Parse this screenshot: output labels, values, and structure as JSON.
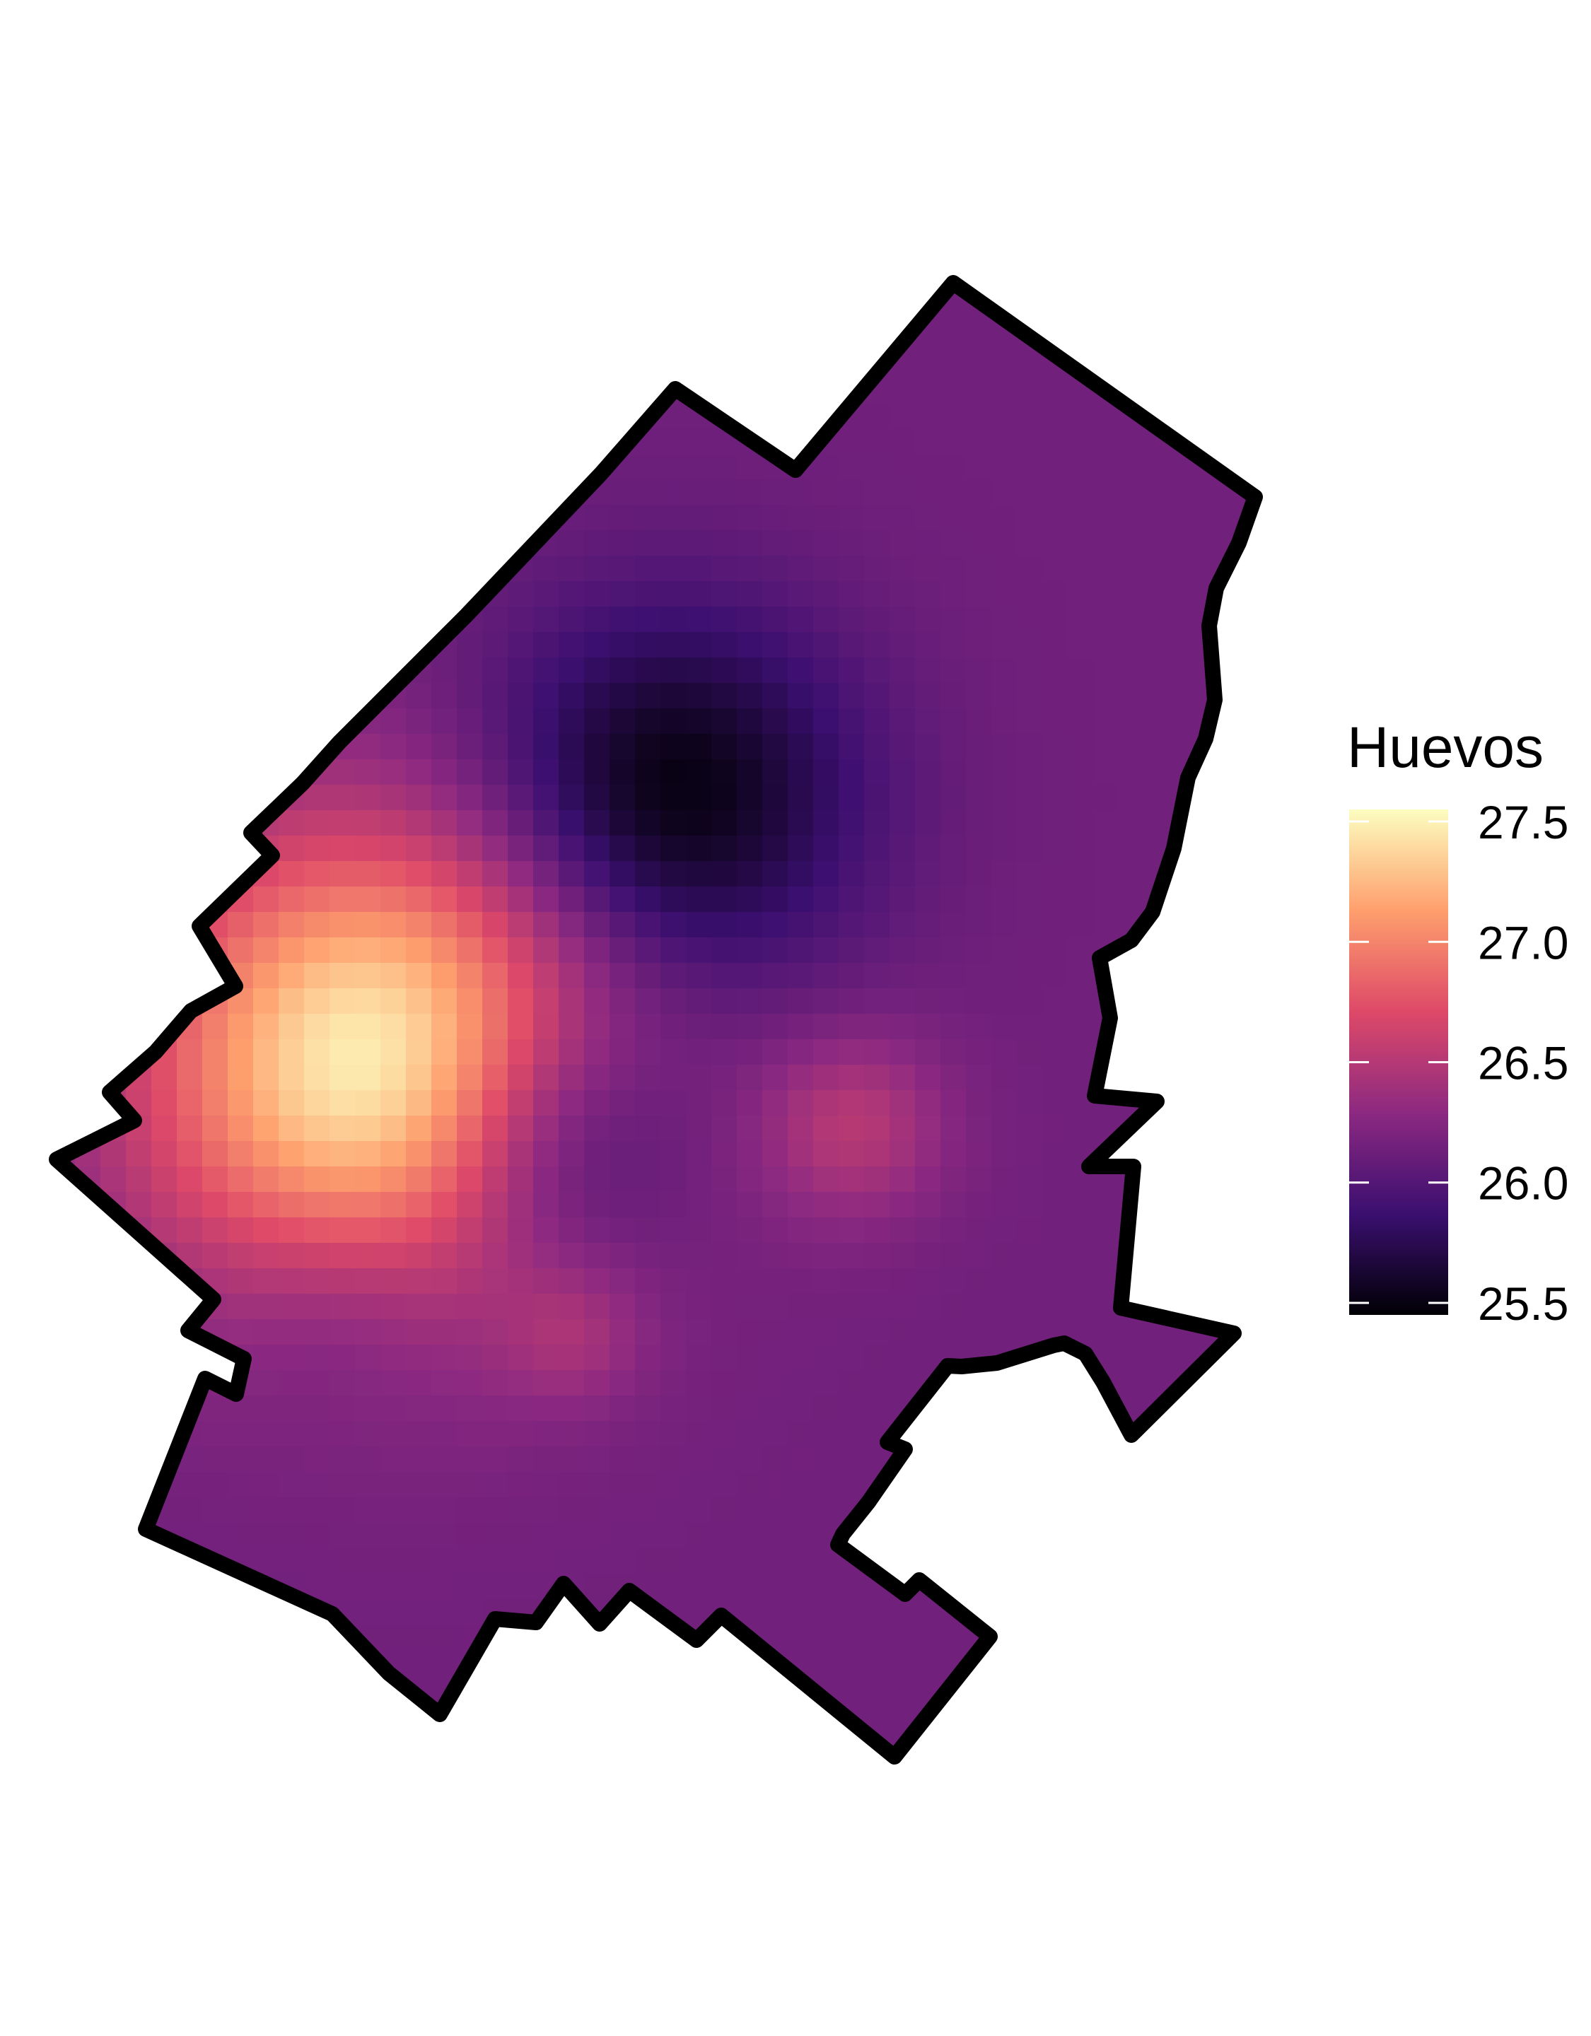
{
  "chart_data": {
    "type": "heatmap",
    "title": "",
    "xlabel": "",
    "ylabel": "",
    "colormap": "magma",
    "grid": false,
    "axes_visible": false,
    "boundary_color": "#000000",
    "value_range": [
      25.45,
      27.55
    ],
    "hotspots": [
      {
        "x": 0.27,
        "y": 0.53,
        "value": 27.55,
        "r": 0.2
      },
      {
        "x": 0.51,
        "y": 0.35,
        "value": 25.45,
        "r": 0.16
      },
      {
        "x": 0.41,
        "y": 0.58,
        "value": 25.6,
        "r": 0.12
      },
      {
        "x": 0.66,
        "y": 0.57,
        "value": 26.5,
        "r": 0.08
      },
      {
        "x": 0.43,
        "y": 0.71,
        "value": 26.35,
        "r": 0.06
      },
      {
        "x": 0.24,
        "y": 0.68,
        "value": 25.95,
        "r": 0.1
      }
    ],
    "base_value": 26.15,
    "legend": {
      "title": "Huevos",
      "position": "right",
      "ticks": [
        "27.5",
        "27.0",
        "26.5",
        "26.0",
        "25.5"
      ],
      "tick_values": [
        27.5,
        27.0,
        26.5,
        26.0,
        25.5
      ],
      "colors": [
        "#fcfdbf",
        "#fe9f6d",
        "#de4968",
        "#8c2981",
        "#3b0f70",
        "#000004"
      ]
    }
  }
}
